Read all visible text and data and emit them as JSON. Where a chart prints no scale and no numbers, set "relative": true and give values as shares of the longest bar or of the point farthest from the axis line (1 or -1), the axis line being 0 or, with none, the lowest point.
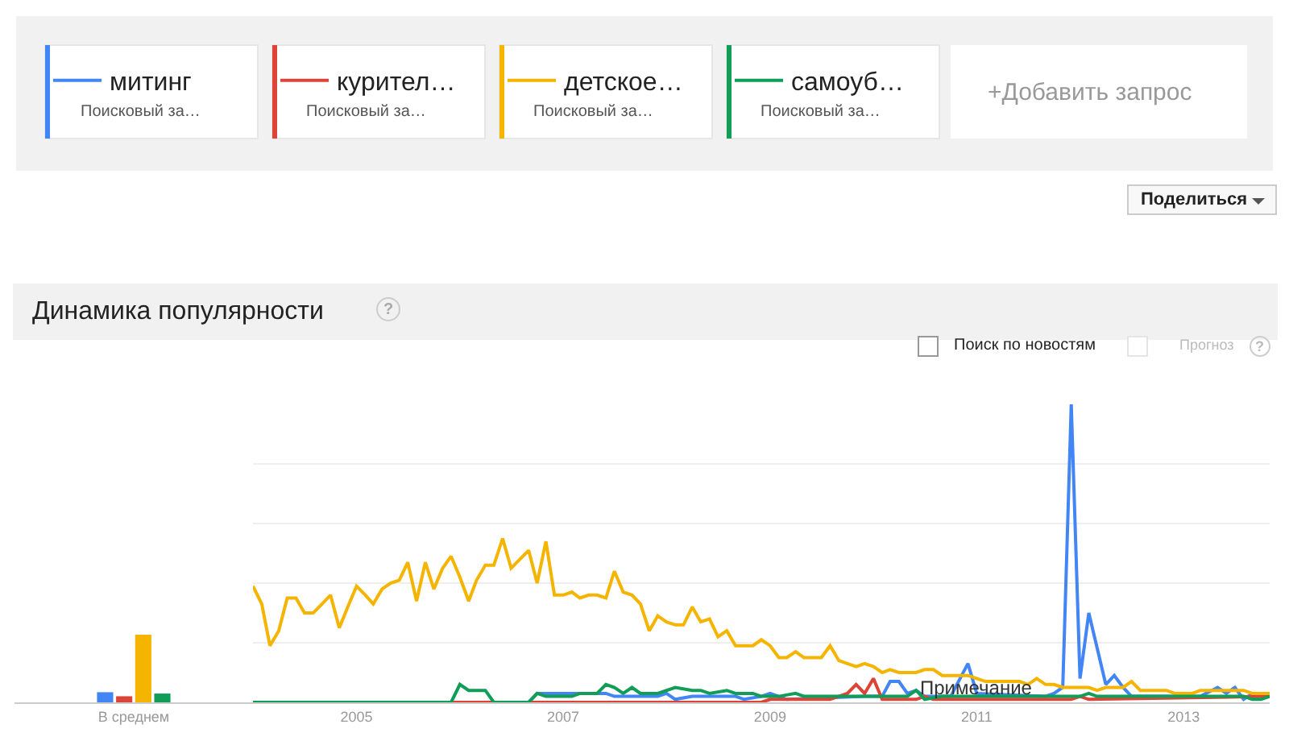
{
  "chart_data": [
    {
      "type": "bar",
      "relative": true,
      "categories": [
        "В среднем"
      ],
      "series": [
        {
          "color": "#4285f4",
          "values": [
            0.15
          ]
        },
        {
          "color": "#db4437",
          "values": [
            0.09
          ]
        },
        {
          "color": "#f4b400",
          "values": [
            1
          ]
        },
        {
          "color": "#0f9d58",
          "values": [
            0.13
          ]
        }
      ]
    },
    {
      "type": "line",
      "relative": true,
      "title": "Динамика популярности",
      "legend": "top",
      "grid": "y",
      "xlim": [
        "2004-01",
        "2013-11"
      ],
      "xticks": [
        {
          "value": "2005-01",
          "label": "2005"
        },
        {
          "value": "2007-01",
          "label": "2007"
        },
        {
          "value": "2009-01",
          "label": "2009"
        },
        {
          "value": "2011-01",
          "label": "2011"
        },
        {
          "value": "2013-01",
          "label": "2013"
        }
      ],
      "series": [
        {
          "name": "митинг",
          "color": "#4285f4",
          "x": [
            "2004-01",
            "2006-09",
            "2006-10",
            "2007-06",
            "2007-07",
            "2007-12",
            "2008-01",
            "2008-02",
            "2008-04",
            "2008-09",
            "2008-10",
            "2008-12",
            "2009-01",
            "2009-03",
            "2009-12",
            "2010-02",
            "2010-03",
            "2010-04",
            "2010-05",
            "2010-06",
            "2010-07",
            "2010-10",
            "2010-12",
            "2011-01",
            "2011-09",
            "2011-10",
            "2011-11",
            "2011-12",
            "2012-01",
            "2012-02",
            "2012-04",
            "2012-05",
            "2012-06",
            "2012-07",
            "2012-10",
            "2013-03",
            "2013-05",
            "2013-06",
            "2013-07",
            "2013-08",
            "2013-09",
            "2013-11"
          ],
          "values": [
            0,
            0,
            0.03,
            0.03,
            0.02,
            0.02,
            0.03,
            0.01,
            0.02,
            0.02,
            0.01,
            0.02,
            0.03,
            0.01,
            0.02,
            0.02,
            0.07,
            0.07,
            0.03,
            0.04,
            0.02,
            0.02,
            0.13,
            0.03,
            0.02,
            0.03,
            0.05,
            1,
            0.08,
            0.3,
            0.06,
            0.09,
            0.05,
            0.02,
            0.02,
            0.02,
            0.05,
            0.03,
            0.05,
            0.01,
            0.03,
            0.03
          ]
        },
        {
          "name": "курител…",
          "color": "#db4437",
          "x": [
            "2004-01",
            "2008-12",
            "2009-01",
            "2009-08",
            "2009-10",
            "2009-11",
            "2009-12",
            "2010-01",
            "2010-02",
            "2010-06",
            "2010-07",
            "2010-08",
            "2011-12",
            "2012-01",
            "2012-02",
            "2013-11"
          ],
          "values": [
            0,
            0,
            0.01,
            0.01,
            0.03,
            0.06,
            0.03,
            0.08,
            0.01,
            0.01,
            0.02,
            0.01,
            0.01,
            0.02,
            0.01,
            0.02
          ]
        },
        {
          "name": "детское…",
          "color": "#f4b400",
          "x": [
            "2004-01",
            "2004-02",
            "2004-03",
            "2004-04",
            "2004-05",
            "2004-06",
            "2004-07",
            "2004-08",
            "2004-09",
            "2004-10",
            "2004-11",
            "2004-12",
            "2005-01",
            "2005-02",
            "2005-03",
            "2005-04",
            "2005-05",
            "2005-06",
            "2005-07",
            "2005-08",
            "2005-09",
            "2005-10",
            "2005-11",
            "2005-12",
            "2006-01",
            "2006-02",
            "2006-03",
            "2006-04",
            "2006-05",
            "2006-06",
            "2006-07",
            "2006-08",
            "2006-09",
            "2006-10",
            "2006-11",
            "2006-12",
            "2007-01",
            "2007-02",
            "2007-03",
            "2007-04",
            "2007-05",
            "2007-06",
            "2007-07",
            "2007-08",
            "2007-09",
            "2007-10",
            "2007-11",
            "2007-12",
            "2008-01",
            "2008-02",
            "2008-03",
            "2008-04",
            "2008-05",
            "2008-06",
            "2008-07",
            "2008-08",
            "2008-09",
            "2008-10",
            "2008-11",
            "2008-12",
            "2009-01",
            "2009-02",
            "2009-03",
            "2009-04",
            "2009-05",
            "2009-06",
            "2009-07",
            "2009-08",
            "2009-09",
            "2009-10",
            "2009-11",
            "2009-12",
            "2010-01",
            "2010-02",
            "2010-03",
            "2010-04",
            "2010-05",
            "2010-06",
            "2010-07",
            "2010-08",
            "2010-09",
            "2010-10",
            "2010-11",
            "2010-12",
            "2011-01",
            "2011-02",
            "2011-03",
            "2011-04",
            "2011-05",
            "2011-06",
            "2011-07",
            "2011-08",
            "2011-09",
            "2011-10",
            "2011-11",
            "2011-12",
            "2012-01",
            "2012-02",
            "2012-03",
            "2012-04",
            "2012-05",
            "2012-06",
            "2012-07",
            "2012-08",
            "2012-09",
            "2012-10",
            "2012-11",
            "2012-12",
            "2013-01",
            "2013-02",
            "2013-03",
            "2013-04",
            "2013-05",
            "2013-06",
            "2013-07",
            "2013-08",
            "2013-09",
            "2013-10",
            "2013-11"
          ],
          "values": [
            0.39,
            0.33,
            0.19,
            0.24,
            0.35,
            0.35,
            0.3,
            0.3,
            0.33,
            0.36,
            0.25,
            0.32,
            0.39,
            0.36,
            0.33,
            0.38,
            0.4,
            0.41,
            0.47,
            0.34,
            0.47,
            0.38,
            0.45,
            0.49,
            0.42,
            0.34,
            0.41,
            0.46,
            0.46,
            0.55,
            0.45,
            0.48,
            0.51,
            0.4,
            0.54,
            0.36,
            0.36,
            0.37,
            0.35,
            0.36,
            0.36,
            0.35,
            0.44,
            0.37,
            0.36,
            0.33,
            0.24,
            0.29,
            0.27,
            0.26,
            0.26,
            0.32,
            0.27,
            0.28,
            0.22,
            0.24,
            0.19,
            0.19,
            0.19,
            0.21,
            0.19,
            0.15,
            0.15,
            0.17,
            0.15,
            0.15,
            0.15,
            0.19,
            0.14,
            0.13,
            0.12,
            0.13,
            0.12,
            0.1,
            0.11,
            0.1,
            0.1,
            0.1,
            0.11,
            0.11,
            0.09,
            0.09,
            0.09,
            0.09,
            0.08,
            0.07,
            0.07,
            0.07,
            0.07,
            0.07,
            0.06,
            0.08,
            0.06,
            0.06,
            0.05,
            0.05,
            0.05,
            0.05,
            0.04,
            0.05,
            0.05,
            0.05,
            0.07,
            0.04,
            0.04,
            0.04,
            0.04,
            0.03,
            0.03,
            0.03,
            0.04,
            0.04,
            0.04,
            0.04,
            0.04,
            0.04,
            0.03,
            0.03,
            0.03
          ]
        },
        {
          "name": "самоуб…",
          "color": "#0f9d58",
          "x": [
            "2004-01",
            "2005-12",
            "2006-01",
            "2006-02",
            "2006-04",
            "2006-05",
            "2006-09",
            "2006-10",
            "2006-11",
            "2007-02",
            "2007-03",
            "2007-05",
            "2007-06",
            "2007-07",
            "2007-08",
            "2007-09",
            "2007-10",
            "2007-12",
            "2008-02",
            "2008-04",
            "2008-05",
            "2008-06",
            "2008-08",
            "2008-09",
            "2008-11",
            "2008-12",
            "2009-02",
            "2009-04",
            "2009-05",
            "2010-05",
            "2010-06",
            "2010-07",
            "2010-09",
            "2012-01",
            "2012-02",
            "2012-03",
            "2013-08",
            "2013-09",
            "2013-10",
            "2013-11"
          ],
          "values": [
            0,
            0,
            0.06,
            0.04,
            0.04,
            0,
            0,
            0.03,
            0.02,
            0.02,
            0.03,
            0.03,
            0.06,
            0.05,
            0.03,
            0.05,
            0.03,
            0.03,
            0.05,
            0.04,
            0.04,
            0.03,
            0.04,
            0.03,
            0.03,
            0.02,
            0.02,
            0.03,
            0.02,
            0.02,
            0.04,
            0.01,
            0.02,
            0.02,
            0.03,
            0.02,
            0.02,
            0.01,
            0.01,
            0.02
          ]
        }
      ],
      "annotations": [
        "Поисковый за…",
        "Поисковый за…",
        "Поисковый за…",
        "Поисковый за…",
        "+Добавить запрос",
        "Поделиться",
        "Поиск по новостям",
        "Прогноз",
        "?",
        "?",
        {
          "text": "Примечание",
          "x": "2011-01",
          "y": 0.05
        }
      ]
    }
  ]
}
